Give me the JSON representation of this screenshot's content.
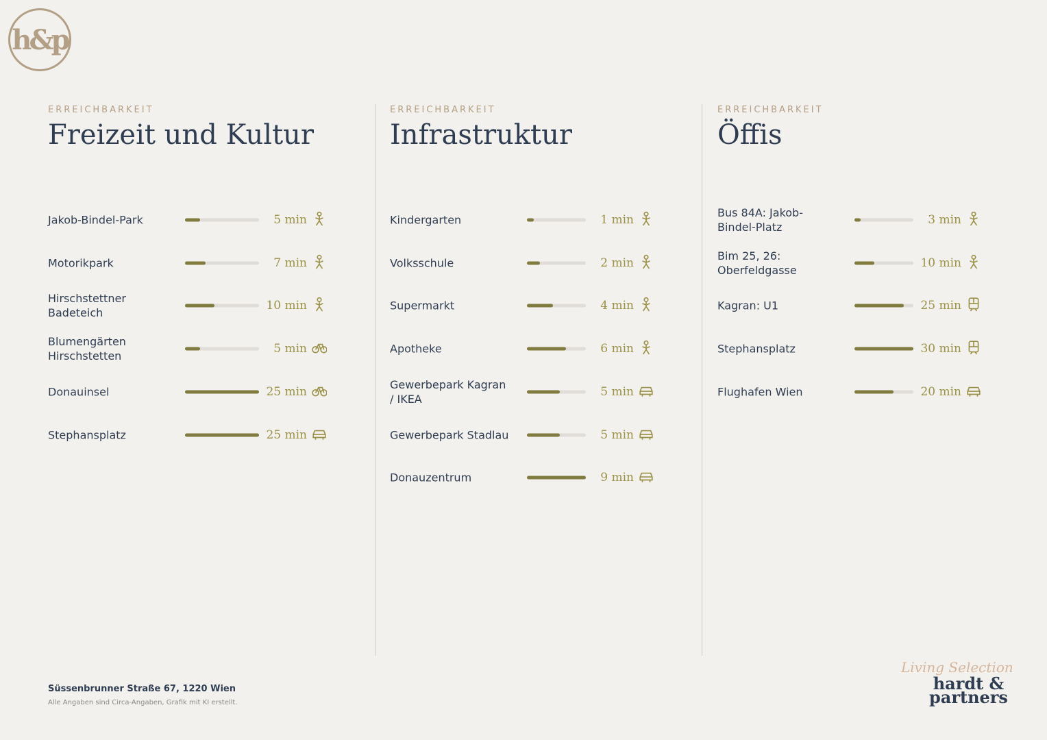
{
  "logo": "h&p",
  "columns": [
    {
      "eyebrow": "ERREICHBARKEIT",
      "title": "Freizeit und Kultur",
      "rows": [
        {
          "label": "Jakob-Bindel-Park",
          "minutes": 5,
          "time_label": "5 min",
          "mode": "walk"
        },
        {
          "label": "Motorikpark",
          "minutes": 7,
          "time_label": "7 min",
          "mode": "walk"
        },
        {
          "label": "Hirschstettner Badeteich",
          "minutes": 10,
          "time_label": "10 min",
          "mode": "walk"
        },
        {
          "label": "Blumengärten Hirschstetten",
          "minutes": 5,
          "time_label": "5 min",
          "mode": "bike"
        },
        {
          "label": "Donauinsel",
          "minutes": 25,
          "time_label": "25 min",
          "mode": "bike"
        },
        {
          "label": "Stephansplatz",
          "minutes": 25,
          "time_label": "25 min",
          "mode": "car"
        }
      ]
    },
    {
      "eyebrow": "ERREICHBARKEIT",
      "title": "Infrastruktur",
      "rows": [
        {
          "label": "Kindergarten",
          "minutes": 1,
          "time_label": "1 min",
          "mode": "walk"
        },
        {
          "label": "Volksschule",
          "minutes": 2,
          "time_label": "2 min",
          "mode": "walk"
        },
        {
          "label": "Supermarkt",
          "minutes": 4,
          "time_label": "4 min",
          "mode": "walk"
        },
        {
          "label": "Apotheke",
          "minutes": 6,
          "time_label": "6 min",
          "mode": "walk"
        },
        {
          "label": "Gewerbepark Kagran / IKEA",
          "minutes": 5,
          "time_label": "5 min",
          "mode": "car"
        },
        {
          "label": "Gewerbepark Stadlau",
          "minutes": 5,
          "time_label": "5 min",
          "mode": "car"
        },
        {
          "label": "Donauzentrum",
          "minutes": 9,
          "time_label": "9 min",
          "mode": "car"
        }
      ]
    },
    {
      "eyebrow": "ERREICHBARKEIT",
      "title": "Öffis",
      "rows": [
        {
          "label": "Bus 84A: Jakob-Bindel-Platz",
          "minutes": 3,
          "time_label": "3 min",
          "mode": "walk"
        },
        {
          "label": "Bim 25, 26: Oberfeldgasse",
          "minutes": 10,
          "time_label": "10 min",
          "mode": "walk"
        },
        {
          "label": "Kagran: U1",
          "minutes": 25,
          "time_label": "25 min",
          "mode": "train"
        },
        {
          "label": "Stephansplatz",
          "minutes": 30,
          "time_label": "30 min",
          "mode": "train"
        },
        {
          "label": "Flughafen Wien",
          "minutes": 20,
          "time_label": "20 min",
          "mode": "car"
        }
      ]
    }
  ],
  "footer": {
    "address": "Süssenbrunner Straße 67, 1220 Wien",
    "note": "Alle Angaben sind Circa-Angaben, Grafik mit KI erstellt."
  },
  "brand": {
    "tagline": "Living Selection",
    "name_line1": "hardt &",
    "name_line2": "partners"
  }
}
